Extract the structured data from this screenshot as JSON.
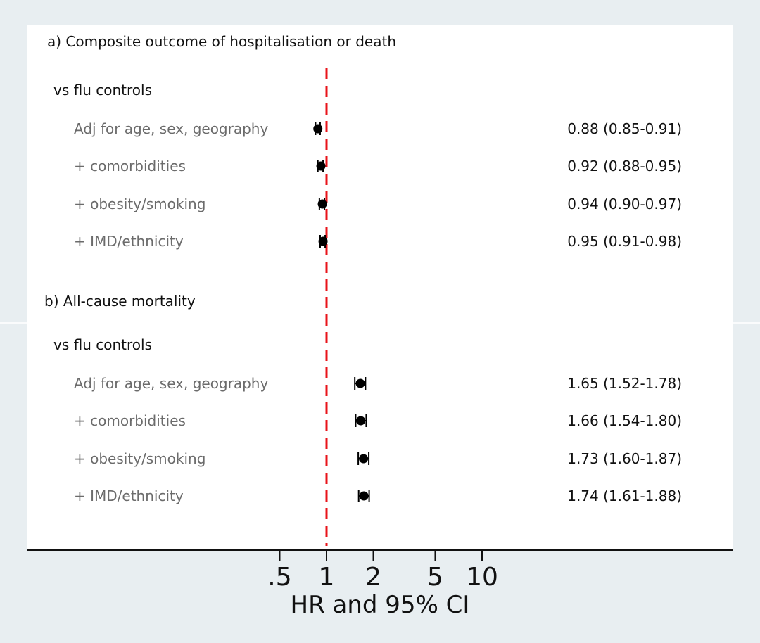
{
  "chart_data": {
    "type": "forest",
    "xscale": "log",
    "xlabel": "HR and 95% CI",
    "reference_value": 1,
    "xticks": [
      {
        "value": 0.5,
        "label": ".5"
      },
      {
        "value": 1,
        "label": "1"
      },
      {
        "value": 2,
        "label": "2"
      },
      {
        "value": 5,
        "label": "5"
      },
      {
        "value": 10,
        "label": "10"
      }
    ],
    "colors": {
      "reference_line": "#e8131a",
      "point": "#000000",
      "background": "#e8eef1",
      "panel": "#ffffff"
    },
    "panels": [
      {
        "title": "a) Composite outcome of hospitalisation or death",
        "group": "vs flu controls",
        "rows": [
          {
            "label": "Adj for age, sex, geography",
            "hr": 0.88,
            "lo": 0.85,
            "hi": 0.91,
            "text": "0.88 (0.85-0.91)"
          },
          {
            "label": "+ comorbidities",
            "hr": 0.92,
            "lo": 0.88,
            "hi": 0.95,
            "text": "0.92 (0.88-0.95)"
          },
          {
            "label": "+ obesity/smoking",
            "hr": 0.94,
            "lo": 0.9,
            "hi": 0.97,
            "text": "0.94 (0.90-0.97)"
          },
          {
            "label": "+ IMD/ethnicity",
            "hr": 0.95,
            "lo": 0.91,
            "hi": 0.98,
            "text": "0.95 (0.91-0.98)"
          }
        ]
      },
      {
        "title": "b) All-cause mortality",
        "group": "vs flu controls",
        "rows": [
          {
            "label": "Adj for age, sex, geography",
            "hr": 1.65,
            "lo": 1.52,
            "hi": 1.78,
            "text": "1.65 (1.52-1.78)"
          },
          {
            "label": "+ comorbidities",
            "hr": 1.66,
            "lo": 1.54,
            "hi": 1.8,
            "text": "1.66 (1.54-1.80)"
          },
          {
            "label": "+ obesity/smoking",
            "hr": 1.73,
            "lo": 1.6,
            "hi": 1.87,
            "text": "1.73 (1.60-1.87)"
          },
          {
            "label": "+ IMD/ethnicity",
            "hr": 1.74,
            "lo": 1.61,
            "hi": 1.88,
            "text": "1.74 (1.61-1.88)"
          }
        ]
      }
    ]
  }
}
